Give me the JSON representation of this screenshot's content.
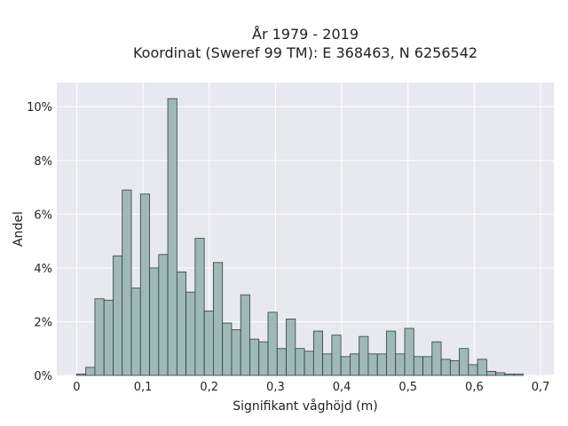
{
  "chart_data": {
    "type": "bar",
    "title_lines": [
      "År 1979 - 2019",
      "Koordinat (Sweref 99 TM): E 368463, N 6256542"
    ],
    "xlabel": "Signifikant våghöjd (m)",
    "ylabel": "Andel",
    "xlim": [
      -0.03,
      0.72
    ],
    "ylim": [
      0,
      10.9
    ],
    "x_ticks": [
      0,
      0.1,
      0.2,
      0.3,
      0.4,
      0.5,
      0.6,
      0.7
    ],
    "x_tick_labels": [
      "0",
      "0,1",
      "0,2",
      "0,3",
      "0,4",
      "0,5",
      "0,6",
      "0,7"
    ],
    "y_ticks": [
      0,
      2,
      4,
      6,
      8,
      10
    ],
    "y_tick_labels": [
      "0%",
      "2%",
      "4%",
      "6%",
      "8%",
      "10%"
    ],
    "bin_width": 0.01375,
    "bin_start": 0,
    "values": [
      0.05,
      0.3,
      2.85,
      2.8,
      4.45,
      6.9,
      3.25,
      6.75,
      4.0,
      4.5,
      10.3,
      3.85,
      3.1,
      5.1,
      2.4,
      4.2,
      1.95,
      1.7,
      3.0,
      1.35,
      1.25,
      2.35,
      1.0,
      2.1,
      1.0,
      0.9,
      1.65,
      0.8,
      1.5,
      0.7,
      0.8,
      1.45,
      0.8,
      0.8,
      1.65,
      0.8,
      1.75,
      0.7,
      0.7,
      1.25,
      0.6,
      0.55,
      1.0,
      0.4,
      0.6,
      0.15,
      0.1,
      0.05,
      0.05
    ],
    "grid": true,
    "bar_color": "#9fb8b8",
    "bar_edge_color": "#2f3f3f",
    "plot_background": "#e8e8f0",
    "grid_color": "#ffffff"
  }
}
